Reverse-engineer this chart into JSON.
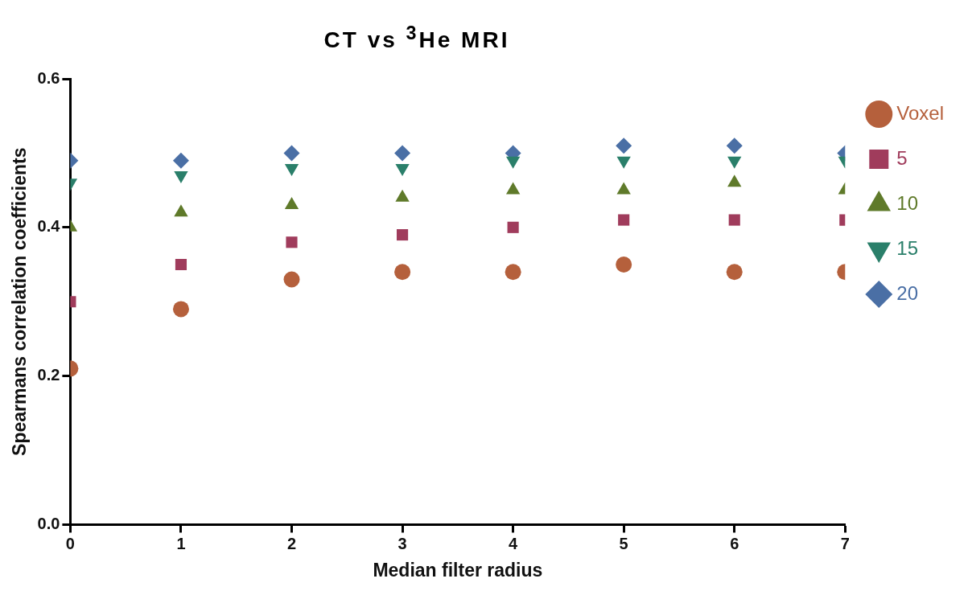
{
  "chart_data": {
    "type": "scatter",
    "title": "CT vs $^{3}$He MRI",
    "xlabel": "Median filter radius",
    "ylabel": "Spearmans correlation coefficients",
    "x": [
      0,
      1,
      2,
      3,
      4,
      5,
      6,
      7
    ],
    "xlim": [
      0,
      7
    ],
    "xticks": [
      0,
      1,
      2,
      3,
      4,
      5,
      6,
      7
    ],
    "ylim": [
      0,
      0.6
    ],
    "yticks": [
      {
        "value": 0,
        "label": "0.0"
      },
      0.2,
      0.4,
      0.6
    ],
    "grid": false,
    "legend": "right",
    "series": [
      {
        "name": "Voxel",
        "color": "#b5603c",
        "marker": "circle",
        "values": [
          0.21,
          0.29,
          0.33,
          0.34,
          0.34,
          0.35,
          0.34,
          0.34
        ]
      },
      {
        "name": "5",
        "color": "#a03c5c",
        "marker": "square",
        "values": [
          0.3,
          0.35,
          0.38,
          0.39,
          0.4,
          0.41,
          0.41,
          0.41
        ]
      },
      {
        "name": "10",
        "color": "#5f7a2a",
        "marker": "triangle",
        "values": [
          0.4,
          0.42,
          0.43,
          0.44,
          0.45,
          0.45,
          0.46,
          0.45
        ]
      },
      {
        "name": "15",
        "color": "#2a7f6a",
        "marker": "triangle-down",
        "values": [
          0.46,
          0.47,
          0.48,
          0.48,
          0.49,
          0.49,
          0.49,
          0.49
        ]
      },
      {
        "name": "20",
        "color": "#4a6fa5",
        "marker": "diamond",
        "values": [
          0.49,
          0.49,
          0.5,
          0.5,
          0.5,
          0.51,
          0.51,
          0.5
        ]
      }
    ]
  }
}
